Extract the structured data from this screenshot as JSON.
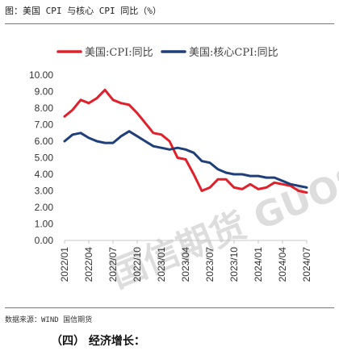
{
  "figure_title": "图：美国 CPI 与核心 CPI 同比（%）",
  "source_note": "数据来源：WIND 国信期货",
  "section_heading": "（四） 经济增长：",
  "watermark": "国信期货 GUOSEN",
  "chart_data": {
    "type": "line",
    "title": "",
    "xlabel": "",
    "ylabel": "",
    "ylim": [
      0,
      10
    ],
    "yticks": [
      "0.00",
      "1.00",
      "2.00",
      "3.00",
      "4.00",
      "5.00",
      "6.00",
      "7.00",
      "8.00",
      "9.00",
      "10.00"
    ],
    "xtick_labels": [
      "2022/01",
      "2022/04",
      "2022/07",
      "2022/10",
      "2023/01",
      "2023/04",
      "2023/07",
      "2023/10",
      "2024/01",
      "2024/04",
      "2024/07"
    ],
    "x": [
      "2022/01",
      "2022/02",
      "2022/03",
      "2022/04",
      "2022/05",
      "2022/06",
      "2022/07",
      "2022/08",
      "2022/09",
      "2022/10",
      "2022/11",
      "2022/12",
      "2023/01",
      "2023/02",
      "2023/03",
      "2023/04",
      "2023/05",
      "2023/06",
      "2023/07",
      "2023/08",
      "2023/09",
      "2023/10",
      "2023/11",
      "2023/12",
      "2024/01",
      "2024/02",
      "2024/03",
      "2024/04",
      "2024/05",
      "2024/06",
      "2024/07"
    ],
    "grid": false,
    "legend_position": "top",
    "series": [
      {
        "name": "美国:CPI:同比",
        "color": "#e0202a",
        "values": [
          7.5,
          7.9,
          8.5,
          8.3,
          8.6,
          9.1,
          8.5,
          8.3,
          8.2,
          7.7,
          7.1,
          6.5,
          6.4,
          6.0,
          5.0,
          4.9,
          4.0,
          3.0,
          3.2,
          3.7,
          3.7,
          3.2,
          3.1,
          3.4,
          3.1,
          3.2,
          3.5,
          3.4,
          3.3,
          3.0,
          2.9
        ]
      },
      {
        "name": "美国:核心CPI:同比",
        "color": "#1f3f7a",
        "values": [
          6.0,
          6.4,
          6.5,
          6.2,
          6.0,
          5.9,
          5.9,
          6.3,
          6.6,
          6.3,
          6.0,
          5.7,
          5.6,
          5.5,
          5.6,
          5.5,
          5.3,
          4.8,
          4.7,
          4.3,
          4.1,
          4.0,
          4.0,
          3.9,
          3.9,
          3.8,
          3.8,
          3.6,
          3.4,
          3.3,
          3.2
        ]
      }
    ]
  }
}
